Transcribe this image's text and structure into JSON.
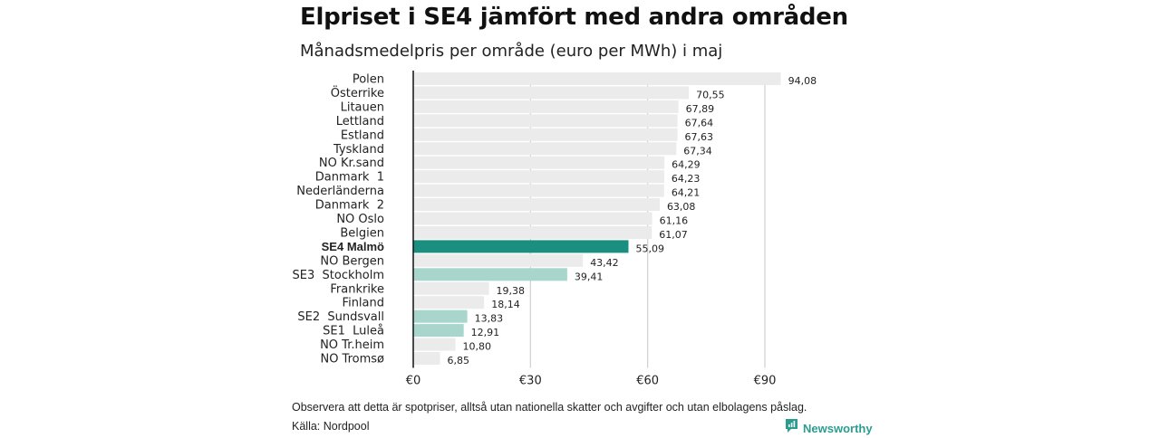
{
  "title": "Elpriset i SE4 jämfört med andra områden",
  "subtitle": "Månadsmedelpris per område (euro per MWh) i maj",
  "note": "Observera att detta är spotpriser, alltså utan nationella skatter och avgifter och utan elbolagens påslag.",
  "source": "Källa: Nordpool",
  "brand": "Newsworthy",
  "colors": {
    "default": "#ebebeb",
    "highlight": "#1a8f80",
    "se_light": "#a8d5cc",
    "grid": "#d0d0d0",
    "axis": "#111111",
    "brand": "#2a9d8f"
  },
  "chart_data": {
    "type": "bar",
    "orientation": "horizontal",
    "categories": [
      "Polen",
      "Österrike",
      "Litauen",
      "Lettland",
      "Estland",
      "Tyskland",
      "NO Kr.sand",
      "Danmark  1",
      "Nederländerna",
      "Danmark  2",
      "NO Oslo",
      "Belgien",
      "SE4 Malmö",
      "NO Bergen",
      "SE3  Stockholm",
      "Frankrike",
      "Finland",
      "SE2  Sundsvall",
      "SE1  Luleå",
      "NO Tr.heim",
      "NO Tromsø"
    ],
    "values": [
      94.08,
      70.55,
      67.89,
      67.64,
      67.63,
      67.34,
      64.29,
      64.23,
      64.21,
      63.08,
      61.16,
      61.07,
      55.09,
      43.42,
      39.41,
      19.38,
      18.14,
      13.83,
      12.91,
      10.8,
      6.85
    ],
    "value_labels": [
      "94,08",
      "70,55",
      "67,89",
      "67,64",
      "67,63",
      "67,34",
      "64,29",
      "64,23",
      "64,21",
      "63,08",
      "61,16",
      "61,07",
      "55,09",
      "43,42",
      "39,41",
      "19,38",
      "18,14",
      "13,83",
      "12,91",
      "10,80",
      "6,85"
    ],
    "bar_style": [
      "default",
      "default",
      "default",
      "default",
      "default",
      "default",
      "default",
      "default",
      "default",
      "default",
      "default",
      "default",
      "highlight",
      "default",
      "se_light",
      "default",
      "default",
      "se_light",
      "se_light",
      "default",
      "default"
    ],
    "bold_category": "SE4 Malmö",
    "x_ticks": [
      0,
      30,
      60,
      90
    ],
    "x_tick_labels": [
      "€0",
      "€30",
      "€60",
      "€90"
    ],
    "xlim": [
      0,
      96
    ],
    "grid": true,
    "legend": "none"
  }
}
